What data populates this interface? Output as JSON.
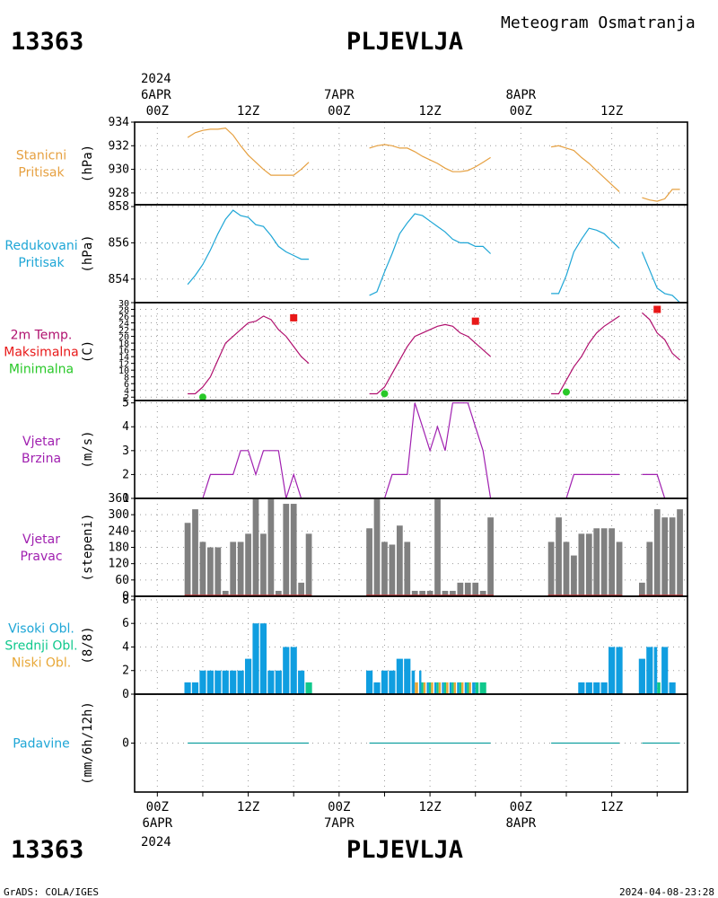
{
  "header": {
    "station_id": "13363",
    "station_name": "PLJEVLJA",
    "title": "Meteogram Osmatranja",
    "footer_left": "GrADS: COLA/IGES",
    "footer_right": "2024-04-08-23:28"
  },
  "time_axis": {
    "top_year": "2024",
    "bottom_year": "2024",
    "day_labels": [
      "6APR",
      "7APR",
      "8APR"
    ],
    "tick_labels": [
      "00Z",
      "12Z",
      "00Z",
      "12Z",
      "00Z",
      "12Z"
    ],
    "range_hours": [
      -3,
      70
    ]
  },
  "colors": {
    "pressure": "#e6a040",
    "reduced": "#1ea6d6",
    "temp": "#b0106e",
    "tmax": "#e81818",
    "tmin": "#28c828",
    "wind": "#a020b0",
    "dir": "#808080",
    "dir_base": "#c83030",
    "high_cloud": "#109ee0",
    "mid_cloud": "#10c88c",
    "low_cloud": "#e8a838",
    "precip": "#10a0a0"
  },
  "chart_data": [
    {
      "type": "line",
      "id": "station-pressure",
      "labels": [
        "Stanicni",
        "Pritisak"
      ],
      "ylabel": "(hPa)",
      "ylim": [
        927,
        934
      ],
      "yticks": [
        928,
        930,
        932,
        934
      ],
      "segments": [
        {
          "x": [
            4,
            5,
            6,
            7,
            8,
            9,
            10,
            11,
            12,
            13,
            14,
            15,
            16,
            17,
            18,
            19,
            20
          ],
          "y": [
            932.7,
            933.1,
            933.3,
            933.4,
            933.4,
            933.5,
            932.9,
            932.0,
            931.2,
            930.6,
            930.0,
            929.5,
            929.5,
            929.5,
            929.5,
            930.0,
            930.6
          ]
        },
        {
          "x": [
            28,
            29,
            30,
            31,
            32,
            33,
            34,
            35,
            36,
            37,
            38,
            39,
            40,
            41,
            42,
            43,
            44
          ],
          "y": [
            931.8,
            932.0,
            932.1,
            932.0,
            931.8,
            931.8,
            931.5,
            931.1,
            930.8,
            930.5,
            930.1,
            929.8,
            929.8,
            929.9,
            930.2,
            930.6,
            931.0
          ]
        },
        {
          "x": [
            52,
            53,
            54,
            55,
            56,
            57,
            58,
            59,
            60,
            61
          ],
          "y": [
            931.9,
            932.0,
            931.8,
            931.6,
            931.0,
            930.5,
            929.9,
            929.3,
            928.7,
            928.1
          ]
        },
        {
          "x": [
            64,
            65,
            66,
            67,
            68,
            69
          ],
          "y": [
            927.6,
            927.4,
            927.3,
            927.5,
            928.3,
            928.3
          ]
        }
      ]
    },
    {
      "type": "line",
      "id": "reduced-pressure",
      "labels": [
        "Redukovani",
        "Pritisak"
      ],
      "ylabel": "(hPa)",
      "ylim": [
        852.7,
        858.1
      ],
      "yticks": [
        854,
        856,
        858
      ],
      "segments": [
        {
          "x": [
            4,
            5,
            6,
            7,
            8,
            9,
            10,
            11,
            12,
            13,
            14,
            15,
            16,
            17,
            18,
            19,
            20
          ],
          "y": [
            853.7,
            854.2,
            854.8,
            855.6,
            856.5,
            857.3,
            857.8,
            857.5,
            857.4,
            857.0,
            856.9,
            856.4,
            855.8,
            855.5,
            855.3,
            855.1,
            855.1
          ]
        },
        {
          "x": [
            28,
            29,
            30,
            31,
            32,
            33,
            34,
            35,
            36,
            37,
            38,
            39,
            40,
            41,
            42,
            43,
            44
          ],
          "y": [
            853.1,
            853.3,
            854.4,
            855.4,
            856.5,
            857.1,
            857.6,
            857.5,
            857.2,
            856.9,
            856.6,
            856.2,
            856.0,
            856.0,
            855.8,
            855.8,
            855.4
          ]
        },
        {
          "x": [
            52,
            53,
            54,
            55,
            56,
            57,
            58,
            59,
            60,
            61
          ],
          "y": [
            853.2,
            853.2,
            854.2,
            855.5,
            856.2,
            856.8,
            856.7,
            856.5,
            856.1,
            855.7
          ]
        },
        {
          "x": [
            64,
            65,
            66,
            67,
            68,
            69
          ],
          "y": [
            855.5,
            854.5,
            853.5,
            853.2,
            853.1,
            852.7
          ]
        }
      ]
    },
    {
      "type": "line",
      "id": "temperature",
      "labels": [
        "2m Temp.",
        "Maksimalna",
        "Minimalna"
      ],
      "ylabel": "(C)",
      "ylim": [
        1,
        30
      ],
      "yticks": [
        2,
        4,
        6,
        8,
        10,
        12,
        14,
        16,
        18,
        20,
        22,
        24,
        26,
        28,
        30
      ],
      "segments": [
        {
          "x": [
            4,
            5,
            6,
            7,
            8,
            9,
            10,
            11,
            12,
            13,
            14,
            15,
            16,
            17,
            18,
            19,
            20
          ],
          "y": [
            3,
            3,
            5,
            8,
            13,
            18,
            20,
            22,
            24,
            24.5,
            26,
            25,
            22,
            20,
            17,
            14,
            12
          ]
        },
        {
          "x": [
            28,
            29,
            30,
            31,
            32,
            33,
            34,
            35,
            36,
            37,
            38,
            39,
            40,
            41,
            42,
            43,
            44
          ],
          "y": [
            3,
            3,
            5,
            9,
            13,
            17,
            20,
            21,
            22,
            23,
            23.5,
            23,
            21,
            20,
            18,
            16,
            14
          ]
        },
        {
          "x": [
            52,
            53,
            54,
            55,
            56,
            57,
            58,
            59,
            60,
            61
          ],
          "y": [
            3,
            3,
            7,
            11,
            14,
            18,
            21,
            23,
            24.5,
            26
          ]
        },
        {
          "x": [
            64,
            65,
            66,
            67,
            68,
            69
          ],
          "y": [
            27,
            25,
            21,
            19,
            15,
            13
          ]
        }
      ],
      "tmax": [
        {
          "x": 18,
          "y": 25.5
        },
        {
          "x": 42,
          "y": 24.5
        },
        {
          "x": 66,
          "y": 28
        }
      ],
      "tmin": [
        {
          "x": 6,
          "y": 2
        },
        {
          "x": 30,
          "y": 3
        },
        {
          "x": 54,
          "y": 3.5
        }
      ]
    },
    {
      "type": "line",
      "id": "wind-speed",
      "labels": [
        "Vjetar",
        "Brzina"
      ],
      "ylabel": "(m/s)",
      "ylim": [
        1,
        5.1
      ],
      "yticks": [
        1,
        2,
        3,
        4,
        5
      ],
      "segments": [
        {
          "x": [
            4,
            5,
            6,
            7,
            8,
            9,
            10,
            11,
            12,
            13,
            14,
            15,
            16,
            17,
            18,
            19,
            20
          ],
          "y": [
            1,
            1,
            1,
            2,
            2,
            2,
            2,
            3,
            3,
            2,
            3,
            3,
            3,
            1,
            2,
            1,
            1
          ]
        },
        {
          "x": [
            28,
            29,
            30,
            31,
            32,
            33,
            34,
            35,
            36,
            37,
            38,
            39,
            40,
            41,
            42,
            43,
            44
          ],
          "y": [
            1,
            1,
            1,
            2,
            2,
            2,
            5,
            4,
            3,
            4,
            3,
            5,
            5,
            5,
            4,
            3,
            1
          ]
        },
        {
          "x": [
            52,
            53,
            54,
            55,
            56,
            57,
            58,
            59,
            60,
            61
          ],
          "y": [
            1,
            1,
            1,
            2,
            2,
            2,
            2,
            2,
            2,
            2
          ]
        },
        {
          "x": [
            64,
            65,
            66,
            67,
            68,
            69
          ],
          "y": [
            2,
            2,
            2,
            1,
            1,
            1
          ]
        }
      ]
    },
    {
      "type": "bar",
      "id": "wind-direction",
      "labels": [
        "Vjetar",
        "Pravac"
      ],
      "ylabel": "(stepeni)",
      "ylim": [
        0,
        360
      ],
      "yticks": [
        0,
        60,
        120,
        180,
        240,
        300,
        360
      ],
      "x": [
        4,
        5,
        6,
        7,
        8,
        9,
        10,
        11,
        12,
        13,
        14,
        15,
        16,
        17,
        18,
        19,
        20,
        28,
        29,
        30,
        31,
        32,
        33,
        34,
        35,
        36,
        37,
        38,
        39,
        40,
        41,
        42,
        43,
        44,
        52,
        53,
        54,
        55,
        56,
        57,
        58,
        59,
        60,
        61,
        64,
        65,
        66,
        67,
        68,
        69
      ],
      "values": [
        270,
        320,
        200,
        180,
        180,
        20,
        200,
        200,
        230,
        360,
        230,
        360,
        20,
        340,
        340,
        50,
        230,
        250,
        360,
        200,
        190,
        260,
        200,
        20,
        20,
        20,
        360,
        20,
        20,
        50,
        50,
        50,
        20,
        290,
        200,
        290,
        200,
        150,
        230,
        230,
        250,
        250,
        250,
        200,
        50,
        200,
        320,
        290,
        290,
        320
      ]
    },
    {
      "type": "bar",
      "id": "clouds",
      "labels": [
        "Visoki Obl.",
        "Srednji Obl.",
        "Niski Obl."
      ],
      "ylabel": "(8/8)",
      "ylim": [
        0,
        8.3
      ],
      "yticks": [
        0,
        2,
        4,
        6,
        8
      ],
      "x": [
        4,
        5,
        6,
        7,
        8,
        9,
        10,
        11,
        12,
        13,
        14,
        15,
        16,
        17,
        18,
        19,
        20,
        28,
        29,
        30,
        31,
        32,
        33,
        34,
        35,
        36,
        37,
        38,
        39,
        40,
        41,
        42,
        43,
        44,
        52,
        53,
        54,
        55,
        56,
        57,
        58,
        59,
        60,
        61,
        64,
        65,
        66,
        67,
        68,
        69
      ],
      "high": [
        1,
        1,
        2,
        2,
        2,
        2,
        2,
        2,
        3,
        6,
        6,
        2,
        2,
        4,
        4,
        2,
        0,
        2,
        1,
        2,
        2,
        3,
        3,
        2,
        2,
        1,
        1,
        1,
        1,
        1,
        1,
        1,
        0,
        0,
        0,
        0,
        0,
        0,
        1,
        1,
        1,
        1,
        4,
        4,
        3,
        4,
        4,
        4,
        1,
        0
      ],
      "mid": [
        0,
        0,
        0,
        0,
        0,
        0,
        0,
        0,
        0,
        0,
        0,
        0,
        0,
        0,
        0,
        0,
        1,
        0,
        0,
        0,
        0,
        0,
        0,
        0,
        1,
        1,
        1,
        1,
        1,
        1,
        1,
        1,
        1,
        0,
        0,
        0,
        0,
        0,
        0,
        0,
        0,
        0,
        0,
        0,
        0,
        0,
        1,
        0,
        0,
        0
      ],
      "low": [
        0,
        0,
        0,
        0,
        0,
        0,
        0,
        0,
        0,
        0,
        0,
        0,
        0,
        0,
        0,
        0,
        0,
        0,
        0,
        0,
        0,
        0,
        0,
        1,
        1,
        1,
        1,
        1,
        1,
        1,
        1,
        0,
        0,
        0,
        0,
        0,
        0,
        0,
        0,
        0,
        0,
        0,
        0,
        0,
        0,
        0,
        0,
        0,
        0,
        0
      ]
    },
    {
      "type": "line",
      "id": "precipitation",
      "labels": [
        "Padavine"
      ],
      "ylabel": "(mm/6h/12h)",
      "ylim": [
        -1,
        1
      ],
      "yticks": [
        0
      ],
      "segments": [
        {
          "x": [
            4,
            20
          ],
          "y": [
            0,
            0
          ]
        },
        {
          "x": [
            28,
            44
          ],
          "y": [
            0,
            0
          ]
        },
        {
          "x": [
            52,
            61
          ],
          "y": [
            0,
            0
          ]
        },
        {
          "x": [
            64,
            69
          ],
          "y": [
            0,
            0
          ]
        }
      ]
    }
  ]
}
